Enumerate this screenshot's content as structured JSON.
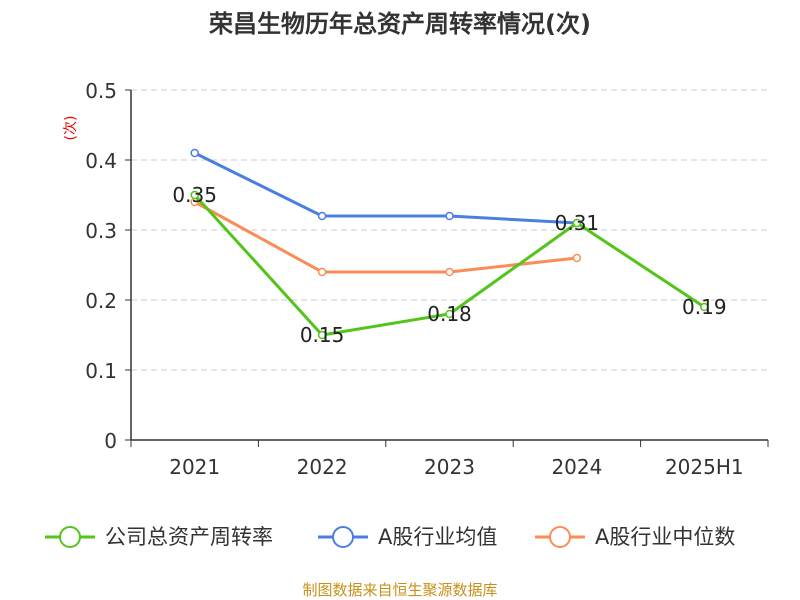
{
  "chart_data": {
    "type": "line",
    "title": "荣昌生物历年总资产周转率情况(次)",
    "ylabel": "(次)",
    "xlabel": "",
    "ylim": [
      0,
      0.5
    ],
    "yticks": [
      "0",
      "0.1",
      "0.2",
      "0.3",
      "0.4",
      "0.5"
    ],
    "categories": [
      "2021",
      "2022",
      "2023",
      "2024",
      "2025H1"
    ],
    "series": [
      {
        "name": "公司总资产周转率",
        "color": "#52c41a",
        "values": [
          0.35,
          0.15,
          0.18,
          0.31,
          0.19
        ],
        "labels": [
          "0.35",
          "0.15",
          "0.18",
          "0.31",
          "0.19"
        ]
      },
      {
        "name": "A股行业均值",
        "color": "#4a7fe0",
        "values": [
          0.41,
          0.32,
          0.32,
          0.31,
          null
        ]
      },
      {
        "name": "A股行业中位数",
        "color": "#fb8c55",
        "values": [
          0.34,
          0.24,
          0.24,
          0.26,
          null
        ]
      }
    ],
    "grid": true,
    "legend": "bottom"
  },
  "footer": "制图数据来自恒生聚源数据库"
}
